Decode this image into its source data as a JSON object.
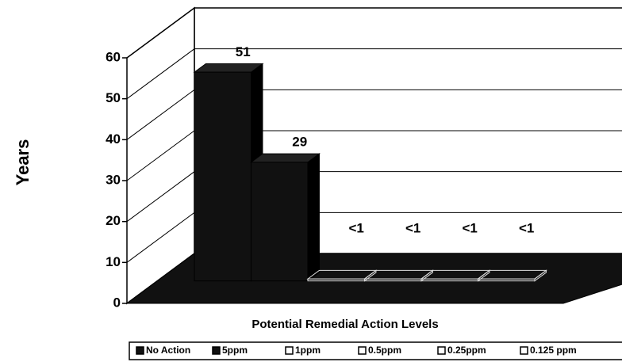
{
  "chart_data": {
    "type": "bar3d",
    "y_label": "Years",
    "x_label": "Potential Remedial Action Levels",
    "categories": [
      "No Action",
      "5ppm",
      "1ppm",
      "0.5ppm",
      "0.25ppm",
      "0.125 ppm"
    ],
    "values": [
      51,
      29,
      0.5,
      0.5,
      0.5,
      0.5
    ],
    "value_labels": [
      "51",
      "29",
      "<1",
      "<1",
      "<1",
      "<1"
    ],
    "color": "#111111",
    "ylim": [
      0,
      60
    ],
    "yticks": [
      0,
      10,
      20,
      30,
      40,
      50,
      60
    ],
    "grid": true,
    "legend": "bottom"
  }
}
